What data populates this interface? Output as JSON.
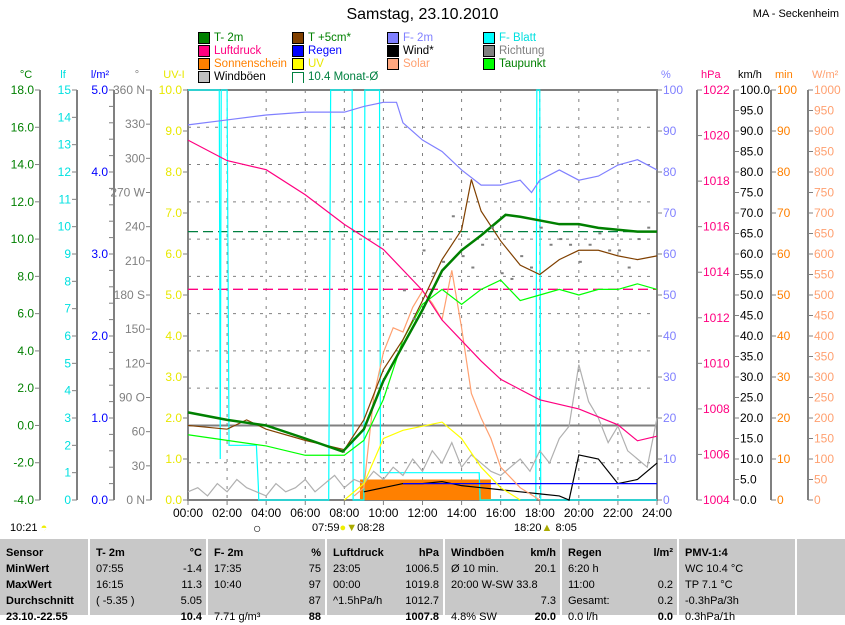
{
  "header": {
    "title": "Samstag, 23.10.2010",
    "station": "MA - Seckenheim"
  },
  "legend": [
    {
      "label": "T- 2m",
      "color": "#008000",
      "text_color": "#008000"
    },
    {
      "label": "T +5cm*",
      "color": "#804000",
      "text_color": "#008000"
    },
    {
      "label": "F- 2m",
      "color": "#8080ff",
      "text_color": "#8080ff"
    },
    {
      "label": "F- Blatt",
      "color": "#00ffff",
      "text_color": "#00e0e0"
    },
    {
      "label": "Luftdruck",
      "color": "#ff0080",
      "text_color": "#ff0080"
    },
    {
      "label": "Regen",
      "color": "#0000ff",
      "text_color": "#0000ff"
    },
    {
      "label": "Wind*",
      "color": "#000000",
      "text_color": "#000000"
    },
    {
      "label": "Richtung",
      "color": "#808080",
      "text_color": "#808080"
    },
    {
      "label": "Sonnenschein",
      "color": "#ff8000",
      "text_color": "#ff8000"
    },
    {
      "label": "UV",
      "color": "#ffff00",
      "text_color": "#e8e800"
    },
    {
      "label": "Solar",
      "color": "#ffa880",
      "text_color": "#ffa070"
    },
    {
      "label": "Taupunkt",
      "color": "#00ff00",
      "text_color": "#008000"
    },
    {
      "label": "Windböen",
      "color": "#c0c0c0",
      "text_color": "#000000"
    },
    {
      "label": "10.4 Monat-Ø",
      "color": "",
      "text_color": "#008040"
    }
  ],
  "chart_data": {
    "type": "line",
    "title": "Samstag, 23.10.2010",
    "x_ticks": [
      "00:00",
      "02:00",
      "04:00",
      "06:00",
      "08:00",
      "10:00",
      "12:00",
      "14:00",
      "16:00",
      "18:00",
      "20:00",
      "22:00",
      "24:00"
    ],
    "xlim": [
      0,
      24
    ],
    "grid": true,
    "axes": {
      "temp": {
        "unit": "°C",
        "color": "#008000",
        "min": -4,
        "max": 18,
        "ticks": [
          "-4.0",
          "-2.0",
          "0.0",
          "2.0",
          "4.0",
          "6.0",
          "8.0",
          "10.0",
          "12.0",
          "14.0",
          "16.0",
          "18.0"
        ]
      },
      "leaf": {
        "unit": "lf",
        "color": "#00e0e0",
        "min": 0,
        "max": 15,
        "ticks": [
          "0",
          "1",
          "2",
          "3",
          "4",
          "5",
          "6",
          "7",
          "8",
          "9",
          "10",
          "11",
          "12",
          "13",
          "14",
          "15"
        ]
      },
      "rain": {
        "unit": "l/m²",
        "color": "#0000ff",
        "min": 0,
        "max": 5,
        "ticks": [
          "0.0",
          "",
          "",
          "",
          "",
          "1.0",
          "",
          "",
          "",
          "",
          "2.0",
          "",
          "",
          "",
          "",
          "3.0",
          "",
          "",
          "",
          "",
          "4.0",
          "",
          "",
          "",
          "",
          "5.0"
        ]
      },
      "dir": {
        "unit": "°",
        "color": "#808080",
        "min": 0,
        "max": 360,
        "ticks": [
          "0 N",
          "30",
          "60",
          "90 O",
          "120",
          "150",
          "180 S",
          "210",
          "240",
          "270 W",
          "300",
          "330",
          "360 N"
        ]
      },
      "uv": {
        "unit": "UV-I",
        "color": "#e8e800",
        "min": 0,
        "max": 10,
        "ticks": [
          "0.0",
          "1.0",
          "2.0",
          "3.0",
          "4.0",
          "5.0",
          "6.0",
          "7.0",
          "8.0",
          "9.0",
          "10.0"
        ]
      },
      "hum": {
        "unit": "%",
        "color": "#8080ff",
        "min": 0,
        "max": 100,
        "ticks": [
          "0",
          "10",
          "20",
          "30",
          "40",
          "50",
          "60",
          "70",
          "80",
          "90",
          "100"
        ]
      },
      "press": {
        "unit": "hPa",
        "color": "#ff0080",
        "min": 1004,
        "max": 1022,
        "ticks": [
          "1004",
          "1006",
          "1008",
          "1010",
          "1012",
          "1014",
          "1016",
          "1018",
          "1020",
          "1022"
        ]
      },
      "wind": {
        "unit": "km/h",
        "color": "#000000",
        "min": 0,
        "max": 100,
        "ticks": [
          "0.0",
          "5.0",
          "10.0",
          "15.0",
          "20.0",
          "25.0",
          "30.0",
          "35.0",
          "40.0",
          "45.0",
          "50.0",
          "55.0",
          "60.0",
          "65.0",
          "70.0",
          "75.0",
          "80.0",
          "85.0",
          "90.0",
          "95.0",
          "100.0"
        ]
      },
      "sun": {
        "unit": "min",
        "color": "#ff8000",
        "min": 0,
        "max": 100,
        "ticks": [
          "0",
          "10",
          "20",
          "30",
          "40",
          "50",
          "60",
          "70",
          "80",
          "90",
          "100"
        ]
      },
      "solar": {
        "unit": "W/m²",
        "color": "#ffa070",
        "min": 0,
        "max": 1000,
        "ticks": [
          "0",
          "50",
          "100",
          "150",
          "200",
          "250",
          "300",
          "350",
          "400",
          "450",
          "500",
          "550",
          "600",
          "650",
          "700",
          "750",
          "800",
          "850",
          "900",
          "950",
          "1000"
        ]
      }
    },
    "reference_lines": [
      {
        "name": "Monat-Ø T-2m",
        "axis": "temp",
        "value": 10.4,
        "color": "#008040",
        "dashed": true
      },
      {
        "name": "Normaldruck",
        "axis": "press",
        "value": 1013.25,
        "color": "#ff0080",
        "dashed": true
      },
      {
        "name": "Nullgrad",
        "axis": "temp",
        "value": 0,
        "color": "#808080",
        "dashed": false
      }
    ],
    "series": [
      {
        "name": "F- Blatt",
        "axis": "leaf",
        "color": "#00ffff",
        "x": [
          0,
          0.01,
          1.6,
          1.65,
          1.7,
          2.0,
          2.1,
          3.5,
          3.6,
          3.62,
          7.2,
          7.3,
          7.35,
          8.4,
          8.45,
          9.0,
          9.05,
          9.6,
          9.62,
          9.8,
          9.85,
          14.9,
          14.95,
          15.0,
          17.8,
          17.85,
          18.0,
          18.05,
          20.0,
          24
        ],
        "values": [
          15,
          15,
          15,
          1.5,
          15,
          15,
          2,
          2,
          0.5,
          0,
          0,
          15,
          15,
          15,
          0,
          0,
          15,
          15,
          15,
          15,
          1,
          1,
          0,
          0,
          0,
          15,
          15,
          0,
          0,
          0
        ]
      },
      {
        "name": "Windböen",
        "axis": "wind",
        "color": "#b0b0b0",
        "x": [
          0,
          0.5,
          1,
          1.5,
          2,
          2.5,
          3,
          3.5,
          4,
          4.5,
          5,
          5.5,
          6,
          6.5,
          7,
          7.5,
          8,
          8.5,
          9,
          9.5,
          10,
          10.5,
          11,
          11.5,
          12,
          12.5,
          13,
          13.5,
          14,
          14.5,
          15,
          15.5,
          16,
          16.5,
          17,
          17.5,
          18,
          18.5,
          19,
          19.5,
          20,
          20.5,
          21,
          21.5,
          22,
          22.5,
          23,
          23.5,
          24
        ],
        "values": [
          2,
          3,
          1,
          4,
          2,
          5,
          3,
          2,
          1,
          4,
          2,
          3,
          5,
          2,
          4,
          6,
          3,
          5,
          4,
          7,
          5,
          8,
          6,
          10,
          7,
          12,
          9,
          14,
          8,
          11,
          9,
          7,
          6,
          8,
          10,
          7,
          12,
          9,
          15,
          18,
          33,
          24,
          20,
          14,
          18,
          12,
          10,
          8,
          20
        ]
      },
      {
        "name": "Wind*",
        "axis": "wind",
        "color": "#000000",
        "x": [
          9,
          10,
          11,
          12,
          13,
          14,
          15,
          16,
          17,
          18,
          19,
          19.5,
          20,
          21,
          22,
          23,
          24
        ],
        "values": [
          2,
          3,
          4,
          4,
          4.5,
          3.5,
          3,
          2.5,
          2,
          1.5,
          1,
          0,
          11,
          10,
          4,
          5,
          9
        ]
      },
      {
        "name": "Regen",
        "axis": "rain",
        "color": "#0000ff",
        "x": [
          11,
          24
        ],
        "values": [
          0.2,
          0.2
        ]
      },
      {
        "name": "Solar",
        "axis": "solar",
        "color": "#ffa070",
        "x": [
          8.5,
          9,
          9.5,
          10,
          10.5,
          11,
          11.5,
          12,
          12.5,
          13,
          13.5,
          14,
          14.5,
          15,
          15.5,
          16,
          17,
          18
        ],
        "values": [
          10,
          30,
          250,
          360,
          420,
          410,
          470,
          510,
          480,
          440,
          560,
          420,
          260,
          200,
          150,
          80,
          30,
          0
        ]
      },
      {
        "name": "UV",
        "axis": "uv",
        "color": "#ffff00",
        "x": [
          8,
          9,
          10,
          11,
          12,
          13,
          14,
          15,
          16,
          17
        ],
        "values": [
          0,
          0.4,
          1.5,
          1.7,
          1.8,
          1.9,
          1.5,
          0.8,
          0.3,
          0
        ]
      },
      {
        "name": "Luftdruck",
        "axis": "press",
        "color": "#ff0080",
        "x": [
          0,
          2,
          4,
          6,
          8,
          10,
          12,
          13,
          14,
          15,
          16,
          18,
          20,
          22,
          23,
          24
        ],
        "values": [
          1019.8,
          1018.9,
          1018.5,
          1017.4,
          1016.1,
          1015.0,
          1013.2,
          1011.9,
          1011.0,
          1010.1,
          1009.3,
          1008.4,
          1008.0,
          1007.3,
          1006.6,
          1006.8
        ]
      },
      {
        "name": "F- 2m",
        "axis": "hum",
        "color": "#8080ff",
        "x": [
          0,
          2,
          4,
          6,
          8,
          9,
          10,
          10.67,
          11,
          12,
          13,
          14,
          15,
          16,
          17,
          17.58,
          18,
          19,
          20,
          21,
          22,
          23,
          24
        ],
        "values": [
          91.5,
          92.7,
          93.9,
          94.6,
          94.6,
          96,
          97,
          97,
          92,
          87.8,
          85,
          80.5,
          76.8,
          76.8,
          78,
          75,
          78,
          80.5,
          78,
          79,
          81.7,
          83,
          80.5
        ]
      },
      {
        "name": "Taupunkt",
        "axis": "temp",
        "color": "#00ff00",
        "x": [
          0,
          2,
          4,
          6,
          8,
          9,
          10,
          11,
          12,
          13,
          14,
          15,
          16,
          17,
          18,
          19,
          20,
          21,
          22,
          23,
          24
        ],
        "values": [
          -0.5,
          -0.8,
          -1.1,
          -1.6,
          -1.6,
          -0.8,
          1.4,
          4.6,
          6.5,
          7.3,
          6.5,
          7.3,
          7.8,
          6.7,
          7.0,
          7.3,
          7.0,
          7.3,
          7.3,
          7.6,
          7.3
        ]
      },
      {
        "name": "T +5cm*",
        "axis": "temp",
        "color": "#804000",
        "x": [
          0,
          2,
          3,
          4,
          6,
          8,
          9,
          10,
          11,
          12,
          13,
          14,
          14.5,
          15,
          16,
          17,
          18,
          19,
          20,
          21,
          22,
          23,
          24
        ],
        "values": [
          0,
          -0.2,
          0.3,
          -0.2,
          -0.8,
          -1.3,
          0.3,
          3.0,
          4.6,
          6.7,
          8.9,
          10.5,
          13.2,
          11.5,
          9.9,
          8.6,
          8.1,
          8.9,
          9.4,
          9.4,
          9.1,
          8.9,
          9.1
        ]
      },
      {
        "name": "T- 2m",
        "axis": "temp",
        "color": "#008000",
        "x": [
          0,
          2,
          4,
          6,
          7.92,
          9,
          10,
          11,
          12,
          13,
          14,
          15,
          16.25,
          17,
          18,
          19,
          20,
          21,
          22,
          23,
          24
        ],
        "values": [
          0.7,
          0.3,
          0,
          -0.7,
          -1.4,
          -0.2,
          2.4,
          4.3,
          6.2,
          8.3,
          9.4,
          10.2,
          11.3,
          11.2,
          11.0,
          10.8,
          10.8,
          10.6,
          10.5,
          10.4,
          10.4
        ]
      }
    ],
    "sunshine": {
      "axis": "sun",
      "color": "#ff8000",
      "start": 8.8,
      "end": 15.5,
      "value": 5
    },
    "wind_direction": {
      "axis": "dir",
      "color": "#808080",
      "x": [
        11,
        11.5,
        12,
        12.5,
        13,
        13.5,
        14,
        14.5,
        15,
        15.5,
        16,
        16.5,
        17,
        17.5,
        18,
        18.5,
        19,
        19.5,
        20,
        20.5,
        21,
        21.5,
        22,
        22.5,
        23,
        23.5
      ],
      "values": [
        185,
        160,
        220,
        200,
        210,
        250,
        215,
        205,
        225,
        240,
        200,
        195,
        215,
        205,
        240,
        225,
        230,
        225,
        210,
        225,
        235,
        220,
        220,
        205,
        230,
        240
      ]
    }
  },
  "astro": {
    "moonrise": "10:21",
    "sunrise": "07:59",
    "day_length_am": "08:28",
    "sunset": "18:20",
    "day_length_pm": "8:05"
  },
  "table": {
    "row_labels": [
      "Sensor",
      "MinWert",
      "MaxWert",
      "Durchschnitt",
      "23.10.-22.55"
    ],
    "columns": [
      {
        "title": "T- 2m",
        "unit": "°C",
        "rows": [
          [
            "07:55",
            "-1.4"
          ],
          [
            "16:15",
            "11.3"
          ],
          [
            "( -5.35 )",
            "5.05"
          ],
          [
            "",
            "10.4"
          ]
        ]
      },
      {
        "title": "F- 2m",
        "unit": "%",
        "rows": [
          [
            "17:35",
            "75"
          ],
          [
            "10:40",
            "97"
          ],
          [
            "",
            "87"
          ],
          [
            "7.71 g/m³",
            "88"
          ]
        ]
      },
      {
        "title": "Luftdruck",
        "unit": "hPa",
        "rows": [
          [
            "23:05",
            "1006.5"
          ],
          [
            "00:00",
            "1019.8"
          ],
          [
            "^1.5hPa/h",
            "1012.7"
          ],
          [
            "",
            "1007.8"
          ]
        ]
      },
      {
        "title": "Windböen",
        "unit": "km/h",
        "rows": [
          [
            "Ø 10 min.",
            "20.1"
          ],
          [
            "20:00   W-SW 33.8",
            ""
          ],
          [
            "",
            "7.3"
          ],
          [
            "4.8% SW",
            "20.0"
          ]
        ]
      },
      {
        "title": "Regen",
        "unit": "l/m²",
        "rows": [
          [
            "6:20 h",
            ""
          ],
          [
            "11:00",
            "0.2"
          ],
          [
            "Gesamt:",
            "0.2"
          ],
          [
            "0.0 l/h",
            "0.0"
          ]
        ]
      },
      {
        "title": "PMV-1:4",
        "unit": "",
        "rows": [
          [
            "WC 10.4 °C",
            ""
          ],
          [
            "TP 7.1 °C",
            ""
          ],
          [
            "-0.3hPa/3h",
            ""
          ],
          [
            "0.3hPa/1h",
            ""
          ]
        ]
      }
    ]
  }
}
